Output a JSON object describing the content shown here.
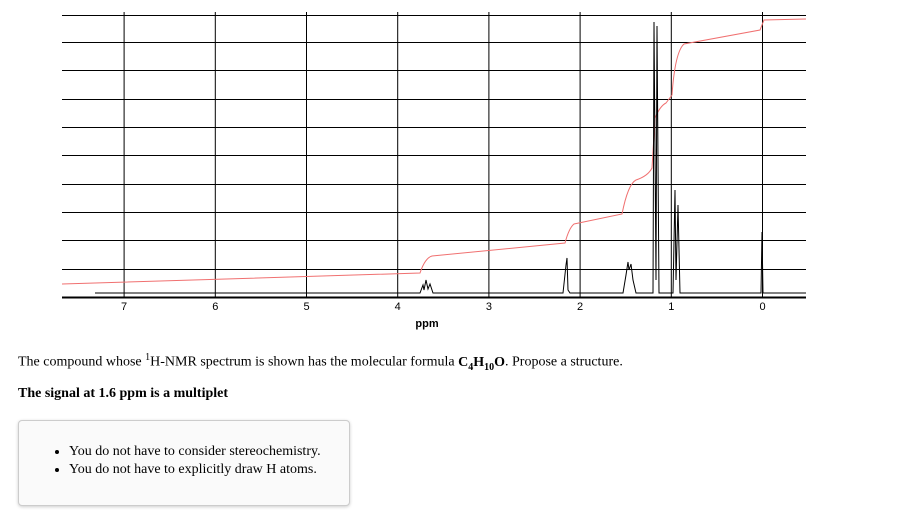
{
  "spectrum": {
    "xticks": [
      7,
      6,
      5,
      4,
      3,
      2,
      1,
      0
    ],
    "xlabel": "ppm"
  },
  "question": {
    "parts": [
      "The compound whose ",
      "1",
      "H-NMR spectrum is shown has the molecular formula ",
      "C",
      "4",
      "H",
      "10",
      "O",
      ". Propose a structure."
    ]
  },
  "note": "The signal at 1.6 ppm is a multiplet",
  "hints": [
    "You do not have to consider stereochemistry.",
    "You do not have to explicitly draw H atoms."
  ]
}
